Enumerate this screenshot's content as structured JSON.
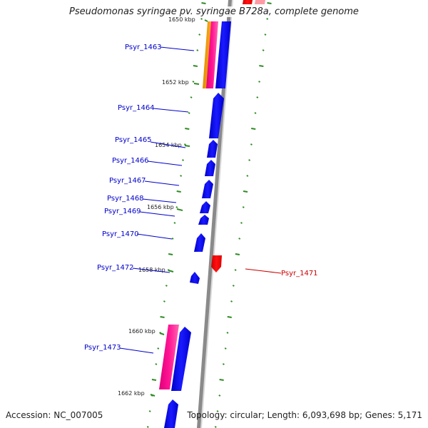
{
  "title": "Pseudomonas syringae pv. syringae B728a, complete genome",
  "footer": {
    "accession": "Accession: NC_007005",
    "topology": "Topology: circular; Length: 6,093,698 bp; Genes: 5,171"
  },
  "colors": {
    "forward_cds": "#0000ff",
    "reverse_cds": "#ff0000",
    "rna": "#ff1493",
    "misc_feature": "#ffa500",
    "backbone": "#888888",
    "tick": "#2e8b22",
    "forward_label": "#0000cc",
    "reverse_label": "#cc0000"
  },
  "kbp_marks": [
    "1650 kbp",
    "1652 kbp",
    "1654 kbp",
    "1656 kbp",
    "1658 kbp",
    "1660 kbp",
    "1662 kbp"
  ],
  "genes": [
    {
      "label": "Psyr_1463",
      "strand": "forward"
    },
    {
      "label": "Psyr_1464",
      "strand": "forward"
    },
    {
      "label": "Psyr_1465",
      "strand": "forward"
    },
    {
      "label": "Psyr_1466",
      "strand": "forward"
    },
    {
      "label": "Psyr_1467",
      "strand": "forward"
    },
    {
      "label": "Psyr_1468",
      "strand": "forward"
    },
    {
      "label": "Psyr_1469",
      "strand": "forward"
    },
    {
      "label": "Psyr_1470",
      "strand": "forward"
    },
    {
      "label": "Psyr_1472",
      "strand": "forward"
    },
    {
      "label": "Psyr_1473",
      "strand": "forward"
    },
    {
      "label": "Psyr_1471",
      "strand": "reverse"
    }
  ]
}
